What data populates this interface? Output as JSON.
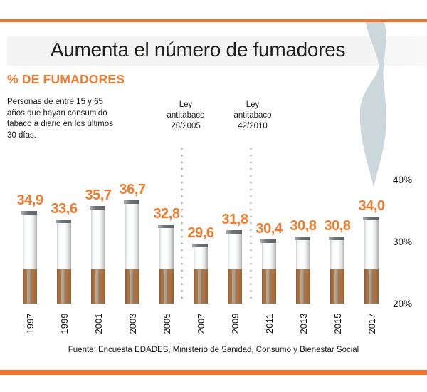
{
  "header": {
    "title": "Aumenta el número de fumadores",
    "section_label": "% DE FUMADORES",
    "description": "Personas de entre 15 y 65\naños que hayan consumido\ntabaco a diario en los últimos\n30 días."
  },
  "annotations": [
    {
      "text": "Ley\nantitabaco\n28/2005"
    },
    {
      "text": "Ley\nantitabaco\n42/2010"
    }
  ],
  "chart_data": {
    "type": "bar",
    "title": "% DE FUMADORES",
    "categories": [
      "1997",
      "1999",
      "2001",
      "2003",
      "2005",
      "2007",
      "2009",
      "2011",
      "2013",
      "2015",
      "2017"
    ],
    "values": [
      34.9,
      33.6,
      35.7,
      36.7,
      32.8,
      29.6,
      31.8,
      30.4,
      30.8,
      30.8,
      34.0
    ],
    "value_labels": [
      "34,9",
      "33,6",
      "35,7",
      "36,7",
      "32,8",
      "29,6",
      "31,8",
      "30,4",
      "30,8",
      "30,8",
      "34,0"
    ],
    "yticks": [
      "40%",
      "30%",
      "20%"
    ],
    "ylim": [
      20,
      40
    ],
    "xlabel": "",
    "ylabel": "% de fumadores",
    "grid": false,
    "legend": false,
    "bar_style": "cigarette",
    "annotation_positions": [
      "between 2005 and 2007",
      "between 2009 and 2011"
    ]
  },
  "source": "Fuente: Encuesta EDADES, Ministerio de Sanidad, Consumo y Bienestar Social",
  "colors": {
    "accent_orange": "#F1762B",
    "value_orange": "#EF7B2E",
    "smoke_gray": "#CBD7DB",
    "dot_gray": "#B9C0C2",
    "cap_gray": "#6E7378",
    "filter_brown": "#AD7245",
    "band_gray": "#F3F3F3",
    "text_black": "#1D1D1B"
  }
}
